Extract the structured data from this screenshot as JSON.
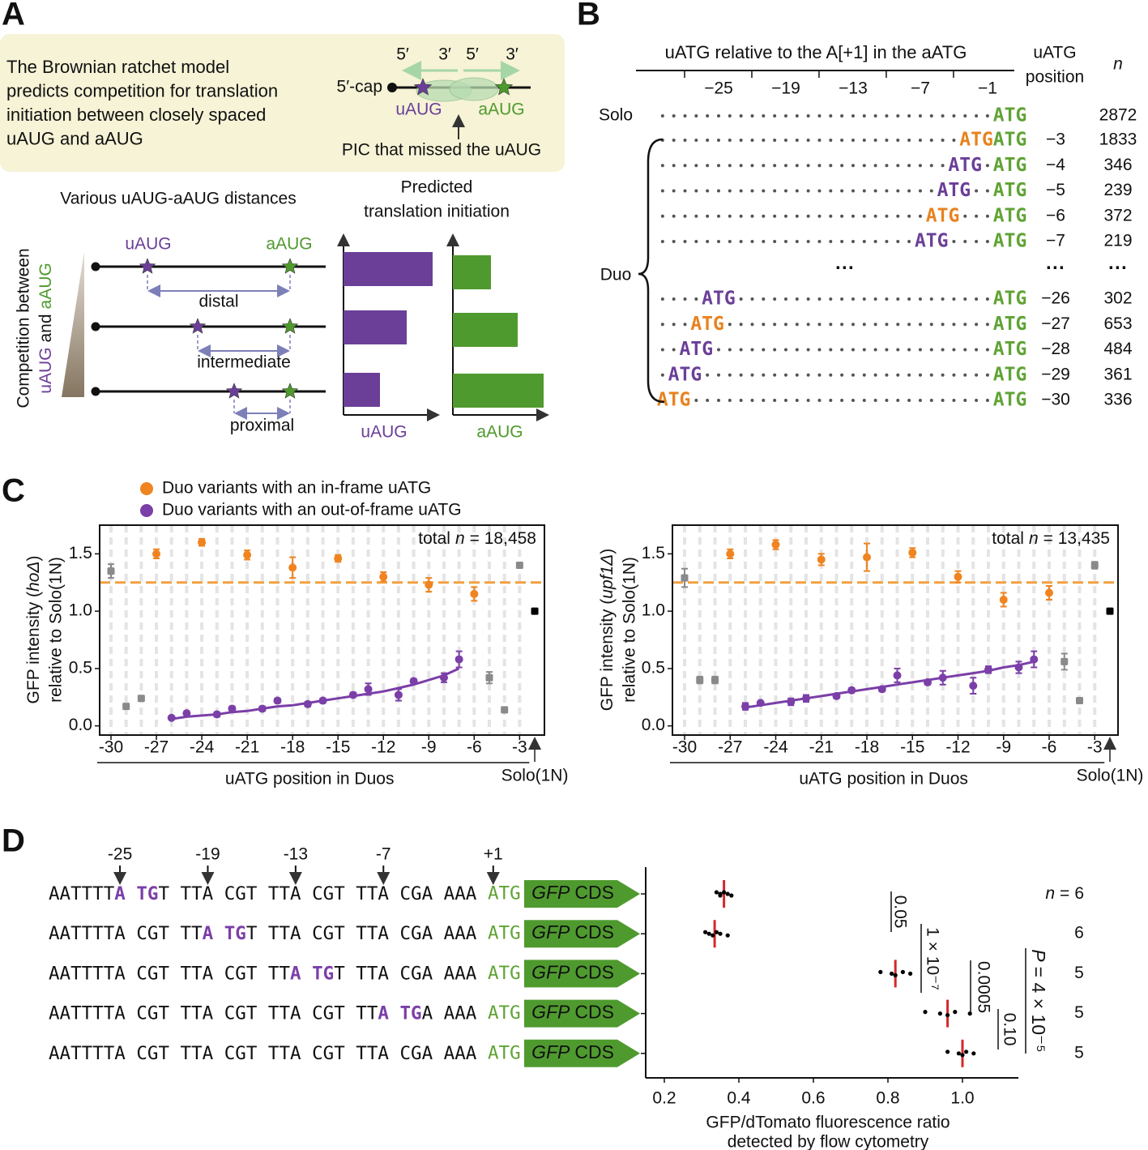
{
  "panel_a": {
    "label": "A",
    "colors": {
      "u": "#6b3f98",
      "a": "#4f9a2e"
    },
    "box_lines": [
      "The Brownian ratchet model",
      "predicts competition for translation",
      "initiation between closely spaced",
      "uAUG and aAUG"
    ],
    "primes": [
      "5′",
      "3′"
    ],
    "cap": "5′-cap",
    "uaug": "uAUG",
    "aaug": "aAUG",
    "pic": "PIC that missed the uAUG",
    "distances_title": "Various uAUG-aAUG distances",
    "predicted": [
      "Predicted",
      "translation initiation"
    ],
    "competition": [
      "Competition between",
      "and"
    ],
    "distances": [
      "distal",
      "intermediate",
      "proximal"
    ]
  },
  "panel_b": {
    "label": "B",
    "header": "uATG relative to the A[+1] in the aATG",
    "ticks": [
      {
        "value": -25,
        "label": "−25"
      },
      {
        "value": -19,
        "label": "−19"
      },
      {
        "value": -13,
        "label": "−13"
      },
      {
        "value": -7,
        "label": "−7"
      },
      {
        "value": -1,
        "label": "−1"
      }
    ],
    "col_position": [
      "uATG",
      "position"
    ],
    "col_n": "n",
    "atg": "ATG",
    "atg_color": "#5fa334",
    "solo": {
      "label": "Solo",
      "n": 2872
    },
    "duo_label": "Duo",
    "ellipsis": "···",
    "rows": [
      {
        "position": {
          "value": -3,
          "label": "−3"
        },
        "n": 1833,
        "color": "#e8821e"
      },
      {
        "position": {
          "value": -4,
          "label": "−4"
        },
        "n": 346,
        "color": "#6b3f98"
      },
      {
        "position": {
          "value": -5,
          "label": "−5"
        },
        "n": 239,
        "color": "#6b3f98"
      },
      {
        "position": {
          "value": -6,
          "label": "−6"
        },
        "n": 372,
        "color": "#e8821e"
      },
      {
        "position": {
          "value": -7,
          "label": "−7"
        },
        "n": 219,
        "color": "#6b3f98"
      },
      {
        "position": {
          "value": -26,
          "label": "−26"
        },
        "n": 302,
        "color": "#6b3f98"
      },
      {
        "position": {
          "value": -27,
          "label": "−27"
        },
        "n": 653,
        "color": "#e8821e"
      },
      {
        "position": {
          "value": -28,
          "label": "−28"
        },
        "n": 484,
        "color": "#6b3f98"
      },
      {
        "position": {
          "value": -29,
          "label": "−29"
        },
        "n": 361,
        "color": "#6b3f98"
      },
      {
        "position": {
          "value": -30,
          "label": "−30"
        },
        "n": 336,
        "color": "#e8821e"
      }
    ]
  },
  "panel_c": {
    "label": "C"
  },
  "panel_d": {
    "label": "D",
    "ticks": [
      "-25",
      "-19",
      "-13",
      "-7",
      "+1"
    ],
    "atg": "ATG",
    "cds": [
      "GFP",
      "CDS"
    ],
    "highlight_color": "#7b3fa8",
    "atg_color": "#5fa334",
    "rows": [
      {
        "pre": "AATTTT",
        "u": "A TG",
        "post": "T TTA CGT TTA CGT TTA CGA AAA"
      },
      {
        "pre": "AATTTTA CGT TT",
        "u": "A TG",
        "post": "T TTA CGT TTA CGA AAA"
      },
      {
        "pre": "AATTTTA CGT TTA CGT TT",
        "u": "A TG",
        "post": "T TTA CGA AAA"
      },
      {
        "pre": "AATTTTA CGT TTA CGT TTA CGT TT",
        "u": "A TG",
        "post": "A AAA"
      },
      {
        "pre": "AATTTTA CGT TTA CGT TTA CGT TTA CGA AAA"
      }
    ]
  },
  "chart_data": [
    {
      "type": "scatter",
      "categories": [
        "-30",
        null,
        null,
        "-27",
        null,
        null,
        "-24",
        null,
        null,
        "-21",
        null,
        null,
        "-18",
        null,
        null,
        "-15",
        null,
        null,
        "-12",
        null,
        null,
        "-9",
        null,
        null,
        "-6",
        null,
        null,
        "-3",
        "Solo(1N)"
      ],
      "xlabel": "uATG position in Duos",
      "ylabel": [
        "GFP intensity (",
        "hoΔ",
        ")"
      ],
      "ylabel2": "relative to Solo(1N)",
      "annotation": [
        "total",
        "n",
        "= 18,458"
      ],
      "ylim": [
        -0.08,
        1.75
      ],
      "yticks": [
        {
          "value": 0,
          "label": "0.0"
        },
        0.5,
        {
          "value": 1,
          "label": "1.0"
        },
        1.5
      ],
      "reference_line": 1.25,
      "reference_color": "#f2a040",
      "grid": true,
      "series": [
        {
          "name": "Duo variants with an in-frame uATG",
          "color": "#ef8420",
          "marker": "circle",
          "values": [
            null,
            null,
            null,
            1.5,
            null,
            null,
            1.6,
            null,
            null,
            1.49,
            null,
            null,
            1.38,
            null,
            null,
            1.46,
            null,
            null,
            1.3,
            null,
            null,
            1.23,
            null,
            null,
            1.15,
            null,
            null,
            null,
            null
          ],
          "errors": [
            null,
            null,
            null,
            0.04,
            null,
            null,
            0.03,
            null,
            null,
            0.04,
            null,
            null,
            0.09,
            null,
            null,
            0.03,
            null,
            null,
            0.04,
            null,
            null,
            0.06,
            null,
            null,
            0.06,
            null,
            null,
            null,
            null
          ]
        },
        {
          "name": "Duo variants with an out-of-frame uATG",
          "color": "#7b3fa8",
          "marker": "circle",
          "values": [
            null,
            null,
            null,
            null,
            0.07,
            0.11,
            null,
            0.1,
            0.15,
            null,
            0.15,
            0.22,
            null,
            0.19,
            0.22,
            null,
            0.27,
            0.32,
            null,
            0.27,
            0.39,
            null,
            0.42,
            0.58,
            null,
            null,
            null,
            null,
            null
          ],
          "errors": [
            null,
            null,
            null,
            null,
            0.01,
            0.01,
            null,
            0.02,
            0.02,
            null,
            0.02,
            0.02,
            null,
            0.02,
            0.02,
            null,
            0.02,
            0.05,
            null,
            0.05,
            0.02,
            null,
            0.04,
            0.07,
            null,
            null,
            null,
            null,
            null
          ]
        },
        {
          "color": "#8a8a8a",
          "marker": "square",
          "values": [
            1.35,
            0.17,
            0.24,
            null,
            null,
            null,
            null,
            null,
            null,
            null,
            null,
            null,
            null,
            null,
            null,
            null,
            null,
            null,
            null,
            null,
            null,
            null,
            null,
            null,
            null,
            0.42,
            0.14,
            1.4,
            null
          ],
          "errors": [
            0.06,
            0.02,
            0.02,
            null,
            null,
            null,
            null,
            null,
            null,
            null,
            null,
            null,
            null,
            null,
            null,
            null,
            null,
            null,
            null,
            null,
            null,
            null,
            null,
            null,
            null,
            0.05,
            0.02,
            0.02,
            null
          ]
        },
        {
          "color": "#000000",
          "marker": "square",
          "values": [
            null,
            null,
            null,
            null,
            null,
            null,
            null,
            null,
            null,
            null,
            null,
            null,
            null,
            null,
            null,
            null,
            null,
            null,
            null,
            null,
            null,
            null,
            null,
            null,
            null,
            null,
            null,
            null,
            1.0
          ],
          "errors": [
            null,
            null,
            null,
            null,
            null,
            null,
            null,
            null,
            null,
            null,
            null,
            null,
            null,
            null,
            null,
            null,
            null,
            null,
            null,
            null,
            null,
            null,
            null,
            null,
            null,
            null,
            null,
            null,
            0.02
          ]
        },
        {
          "color": "#7b3fa8",
          "mode": "line",
          "values": [
            null,
            null,
            null,
            null,
            0.06,
            0.08,
            0.09,
            0.1,
            0.12,
            0.13,
            0.15,
            0.17,
            0.18,
            0.2,
            0.22,
            0.24,
            0.26,
            0.28,
            0.3,
            0.33,
            0.36,
            0.4,
            0.44,
            0.5,
            null,
            null,
            null,
            null,
            null
          ]
        }
      ]
    },
    {
      "type": "scatter",
      "categories": [
        "-30",
        null,
        null,
        "-27",
        null,
        null,
        "-24",
        null,
        null,
        "-21",
        null,
        null,
        "-18",
        null,
        null,
        "-15",
        null,
        null,
        "-12",
        null,
        null,
        "-9",
        null,
        null,
        "-6",
        null,
        null,
        "-3",
        "Solo(1N)"
      ],
      "xlabel": "uATG position in Duos",
      "ylabel": [
        "GFP intensity (",
        "upf1Δ",
        ")"
      ],
      "ylabel2": "relative to Solo(1N)",
      "annotation": [
        "total",
        "n",
        "= 13,435"
      ],
      "ylim": [
        -0.08,
        1.75
      ],
      "yticks": [
        {
          "value": 0,
          "label": "0.0"
        },
        0.5,
        {
          "value": 1,
          "label": "1.0"
        },
        1.5
      ],
      "reference_line": 1.25,
      "reference_color": "#f2a040",
      "grid": true,
      "series": [
        {
          "color": "#ef8420",
          "marker": "circle",
          "values": [
            null,
            null,
            null,
            1.5,
            null,
            null,
            1.58,
            null,
            null,
            1.45,
            null,
            null,
            1.47,
            null,
            null,
            1.51,
            null,
            null,
            1.3,
            null,
            null,
            1.1,
            null,
            null,
            1.16,
            null,
            null,
            null,
            null
          ],
          "errors": [
            null,
            null,
            null,
            0.04,
            null,
            null,
            0.04,
            null,
            null,
            0.05,
            null,
            null,
            0.12,
            null,
            null,
            0.04,
            null,
            null,
            0.05,
            null,
            null,
            0.06,
            null,
            null,
            0.06,
            null,
            null,
            null,
            null
          ]
        },
        {
          "color": "#7b3fa8",
          "marker": "circle",
          "values": [
            null,
            null,
            null,
            null,
            0.17,
            0.2,
            null,
            0.21,
            0.24,
            null,
            0.26,
            0.31,
            null,
            0.32,
            0.44,
            null,
            0.38,
            0.42,
            null,
            0.35,
            0.49,
            null,
            0.51,
            0.58,
            null,
            null,
            null,
            null,
            null
          ],
          "errors": [
            null,
            null,
            null,
            null,
            0.03,
            0.01,
            null,
            0.03,
            0.03,
            null,
            0.02,
            0.02,
            null,
            0.02,
            0.06,
            null,
            0.02,
            0.06,
            null,
            0.07,
            0.03,
            null,
            0.05,
            0.07,
            null,
            null,
            null,
            null,
            null
          ]
        },
        {
          "color": "#8a8a8a",
          "marker": "square",
          "values": [
            1.29,
            0.4,
            0.4,
            null,
            null,
            null,
            null,
            null,
            null,
            null,
            null,
            null,
            null,
            null,
            null,
            null,
            null,
            null,
            null,
            null,
            null,
            null,
            null,
            null,
            null,
            0.56,
            0.22,
            1.4,
            null
          ],
          "errors": [
            0.08,
            0.03,
            0.03,
            null,
            null,
            null,
            null,
            null,
            null,
            null,
            null,
            null,
            null,
            null,
            null,
            null,
            null,
            null,
            null,
            null,
            null,
            null,
            null,
            null,
            null,
            0.07,
            0.02,
            0.03,
            null
          ]
        },
        {
          "color": "#000000",
          "marker": "square",
          "values": [
            null,
            null,
            null,
            null,
            null,
            null,
            null,
            null,
            null,
            null,
            null,
            null,
            null,
            null,
            null,
            null,
            null,
            null,
            null,
            null,
            null,
            null,
            null,
            null,
            null,
            null,
            null,
            null,
            1.0
          ],
          "errors": [
            null,
            null,
            null,
            null,
            null,
            null,
            null,
            null,
            null,
            null,
            null,
            null,
            null,
            null,
            null,
            null,
            null,
            null,
            null,
            null,
            null,
            null,
            null,
            null,
            null,
            null,
            null,
            null,
            0.02
          ]
        },
        {
          "color": "#7b3fa8",
          "mode": "line",
          "values": [
            null,
            null,
            null,
            null,
            0.16,
            0.18,
            0.2,
            0.22,
            0.24,
            0.26,
            0.28,
            0.3,
            0.32,
            0.34,
            0.36,
            0.38,
            0.4,
            0.42,
            0.44,
            0.46,
            0.48,
            0.51,
            0.53,
            0.56,
            null,
            null,
            null,
            null,
            null
          ]
        }
      ]
    },
    {
      "type": "strip",
      "xlabel": [
        "GFP/dTomato fluorescence ratio",
        "detected by flow cytometry"
      ],
      "xlim": [
        0.15,
        1.15
      ],
      "xticks": [
        0.2,
        0.4,
        0.6,
        0.8,
        {
          "value": 1,
          "label": "1.0"
        }
      ],
      "point_color": "#000000",
      "mean_color": "#d62728",
      "n_label": "n",
      "n_sign": "=",
      "groups": [
        {
          "values": [
            0.34,
            0.35,
            0.35,
            0.36,
            0.37,
            0.38
          ],
          "mean": 0.36,
          "n": 6
        },
        {
          "values": [
            0.31,
            0.32,
            0.33,
            0.34,
            0.35,
            0.37
          ],
          "mean": 0.335,
          "n": 6
        },
        {
          "values": [
            0.78,
            0.81,
            0.82,
            0.84,
            0.86
          ],
          "mean": 0.82,
          "n": 5
        },
        {
          "values": [
            0.9,
            0.94,
            0.96,
            0.98,
            1.02
          ],
          "mean": 0.96,
          "n": 5
        },
        {
          "values": [
            0.96,
            0.99,
            1.0,
            1.01,
            1.03
          ],
          "mean": 1.0,
          "n": 5
        }
      ],
      "pvalues": [
        "0.05",
        "1 × 10⁻⁷",
        "0.0005",
        "0.10"
      ],
      "p_overall": [
        "P",
        "= 4 × 10⁻⁵"
      ]
    }
  ]
}
